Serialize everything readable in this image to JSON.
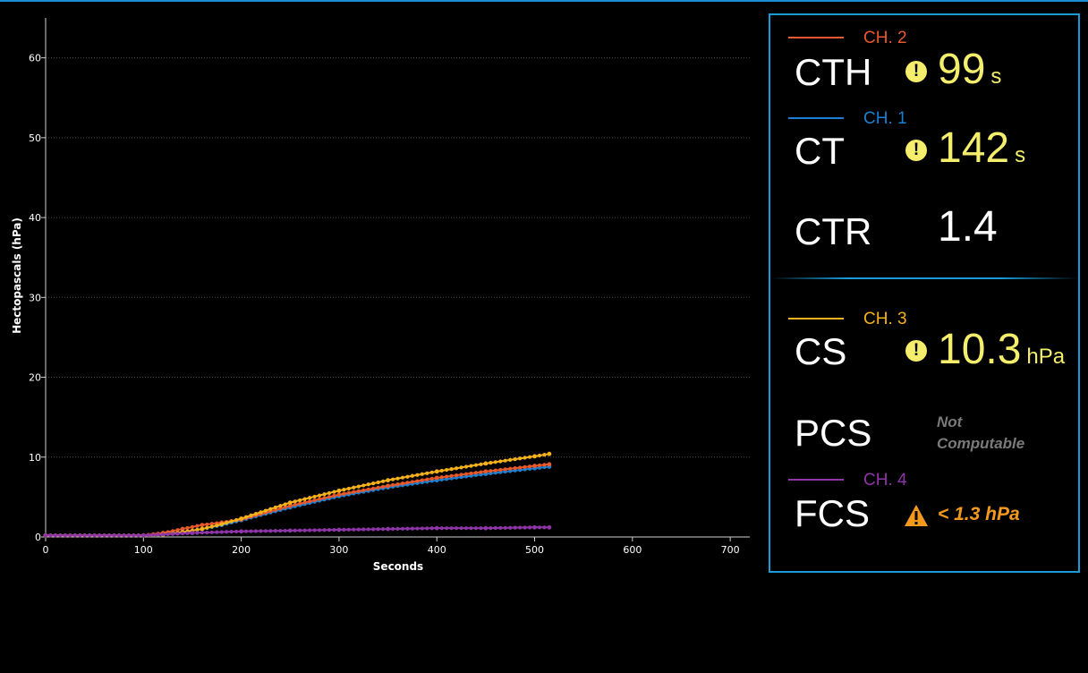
{
  "chart_data": {
    "type": "scatter",
    "xlabel": "Seconds",
    "ylabel": "Hectopascals (hPa)",
    "xlim": [
      0,
      720
    ],
    "ylim": [
      0,
      65
    ],
    "xticks": [
      0,
      100,
      200,
      300,
      400,
      500,
      600,
      700
    ],
    "yticks": [
      0,
      10,
      20,
      30,
      40,
      50,
      60
    ],
    "grid": "horizontal dotted",
    "series": [
      {
        "name": "CH. 1",
        "color": "#1a7fd0",
        "x": [
          0,
          100,
          120,
          140,
          160,
          180,
          200,
          250,
          300,
          350,
          400,
          450,
          500,
          515
        ],
        "y": [
          0.2,
          0.2,
          0.3,
          0.6,
          1.0,
          1.5,
          2.1,
          3.7,
          5.1,
          6.2,
          7.1,
          7.9,
          8.6,
          8.8
        ]
      },
      {
        "name": "CH. 2",
        "color": "#e8582a",
        "x": [
          0,
          100,
          120,
          140,
          160,
          180,
          200,
          250,
          300,
          350,
          400,
          450,
          500,
          515
        ],
        "y": [
          0.2,
          0.2,
          0.5,
          1.0,
          1.5,
          1.8,
          2.2,
          3.9,
          5.3,
          6.4,
          7.4,
          8.2,
          8.9,
          9.1
        ]
      },
      {
        "name": "CH. 3",
        "color": "#f5b11c",
        "x": [
          0,
          100,
          120,
          140,
          160,
          180,
          200,
          250,
          300,
          350,
          400,
          450,
          500,
          515
        ],
        "y": [
          0.2,
          0.2,
          0.3,
          0.6,
          1.0,
          1.6,
          2.3,
          4.3,
          5.8,
          7.1,
          8.2,
          9.2,
          10.1,
          10.4
        ]
      },
      {
        "name": "CH. 4",
        "color": "#8e35a8",
        "x": [
          0,
          100,
          150,
          200,
          250,
          300,
          350,
          400,
          450,
          500,
          515
        ],
        "y": [
          0.2,
          0.2,
          0.5,
          0.7,
          0.8,
          0.9,
          1.0,
          1.1,
          1.1,
          1.2,
          1.2
        ]
      }
    ]
  },
  "panel": {
    "ch2": {
      "label": "CH. 2",
      "color": "#e8582a"
    },
    "ch1": {
      "label": "CH. 1",
      "color": "#1a7fd0"
    },
    "ch3": {
      "label": "CH. 3",
      "color": "#f5b11c"
    },
    "ch4": {
      "label": "CH. 4",
      "color": "#8e35a8"
    },
    "cth": {
      "name": "CTH",
      "value": "99",
      "unit": "s",
      "warn": "!"
    },
    "ct": {
      "name": "CT",
      "value": "142",
      "unit": "s",
      "warn": "!"
    },
    "ctr": {
      "name": "CTR",
      "value": "1.4"
    },
    "cs": {
      "name": "CS",
      "value": "10.3",
      "unit": "hPa",
      "warn": "!"
    },
    "pcs": {
      "name": "PCS",
      "value_line1": "Not",
      "value_line2": "Computable"
    },
    "fcs": {
      "name": "FCS",
      "value": "< 1.3 hPa"
    }
  }
}
